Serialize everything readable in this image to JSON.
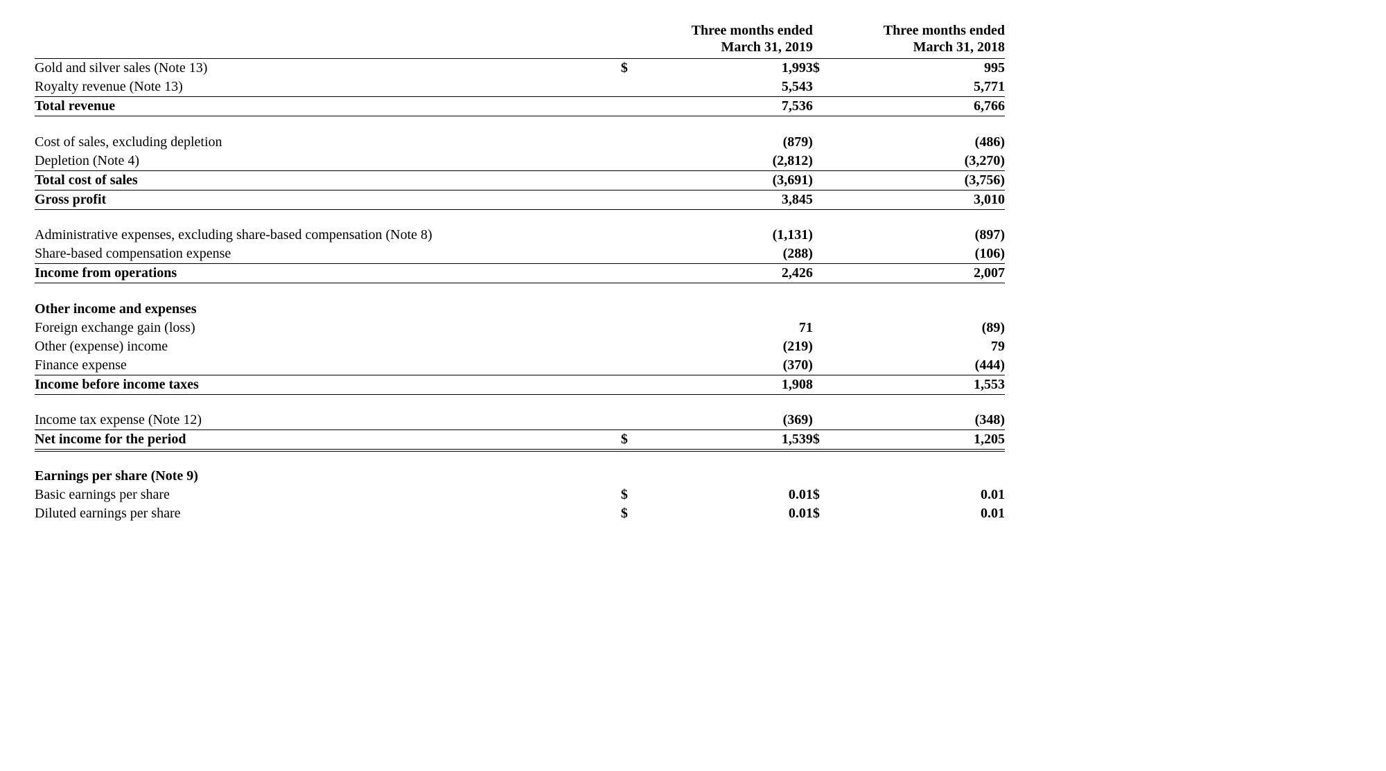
{
  "headers": {
    "col1_line1": "Three months ended",
    "col1_line2": "March 31, 2019",
    "col2_line1": "Three months ended",
    "col2_line2": "March 31, 2018"
  },
  "rows": {
    "gold_silver": {
      "label": "Gold and silver sales (Note 13)",
      "s1": "$",
      "v1": "1,993",
      "s2": "$",
      "v2": "995"
    },
    "royalty": {
      "label": "Royalty revenue (Note 13)",
      "s1": "",
      "v1": "5,543",
      "s2": "",
      "v2": "5,771"
    },
    "total_rev": {
      "label": "Total revenue",
      "s1": "",
      "v1": "7,536",
      "s2": "",
      "v2": "6,766"
    },
    "cost_sales": {
      "label": "Cost of sales, excluding depletion",
      "s1": "",
      "v1": "(879)",
      "s2": "",
      "v2": "(486)"
    },
    "depletion": {
      "label": "Depletion (Note 4)",
      "s1": "",
      "v1": "(2,812)",
      "s2": "",
      "v2": "(3,270)"
    },
    "total_cost": {
      "label": "Total cost of sales",
      "s1": "",
      "v1": "(3,691)",
      "s2": "",
      "v2": "(3,756)"
    },
    "gross": {
      "label": "Gross profit",
      "s1": "",
      "v1": "3,845",
      "s2": "",
      "v2": "3,010"
    },
    "admin": {
      "label": "Administrative expenses, excluding share-based compensation (Note 8)",
      "s1": "",
      "v1": "(1,131)",
      "s2": "",
      "v2": "(897)"
    },
    "share_comp": {
      "label": "Share-based compensation expense",
      "s1": "",
      "v1": "(288)",
      "s2": "",
      "v2": "(106)"
    },
    "income_ops": {
      "label": "Income from operations",
      "s1": "",
      "v1": "2,426",
      "s2": "",
      "v2": "2,007"
    },
    "other_hdr": {
      "label": "Other income and expenses",
      "s1": "",
      "v1": "",
      "s2": "",
      "v2": ""
    },
    "fx": {
      "label": "Foreign exchange gain (loss)",
      "s1": "",
      "v1": "71",
      "s2": "",
      "v2": "(89)"
    },
    "other_inc": {
      "label": "Other (expense) income",
      "s1": "",
      "v1": "(219)",
      "s2": "",
      "v2": "79"
    },
    "finance": {
      "label": "Finance expense",
      "s1": "",
      "v1": "(370)",
      "s2": "",
      "v2": "(444)"
    },
    "income_bt": {
      "label": "Income before income taxes",
      "s1": "",
      "v1": "1,908",
      "s2": "",
      "v2": "1,553"
    },
    "tax": {
      "label": "Income tax expense (Note 12)",
      "s1": "",
      "v1": "(369)",
      "s2": "",
      "v2": "(348)"
    },
    "net_income": {
      "label": "Net income for the period",
      "s1": "$",
      "v1": "1,539",
      "s2": "$",
      "v2": "1,205"
    },
    "eps_hdr": {
      "label": "Earnings per share (Note 9)",
      "s1": "",
      "v1": "",
      "s2": "",
      "v2": ""
    },
    "eps_basic": {
      "label": "Basic earnings per share",
      "s1": "$",
      "v1": "0.01",
      "s2": "$",
      "v2": "0.01"
    },
    "eps_diluted": {
      "label": "Diluted earnings per share",
      "s1": "$",
      "v1": "0.01",
      "s2": "$",
      "v2": "0.01"
    }
  },
  "styling": {
    "font_family": "Times New Roman",
    "text_color": "#000000",
    "background_color": "#ffffff",
    "border_color": "#000000",
    "font_size_pt": 15,
    "value_weight": "bold"
  }
}
